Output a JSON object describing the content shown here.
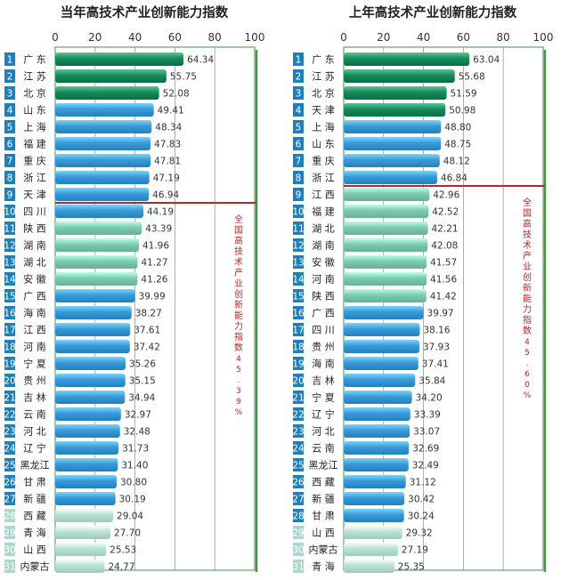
{
  "colors": {
    "dark_green": "#1a8a5a",
    "blue": "#3a9ad8",
    "teal": "#7dcaae",
    "light_teal": "#b8e2d2",
    "rank_badge": "#1f7fb8",
    "cutoff_line": "#c0202a",
    "cutoff_label": "#c0202a",
    "frame": "#7fb87f"
  },
  "chart_data": [
    {
      "type": "bar",
      "orientation": "horizontal",
      "title": "当年高技术产业创新能力指数",
      "xlim": [
        0,
        100
      ],
      "xticks": [
        "0",
        "20",
        "40",
        "60",
        "80",
        "100"
      ],
      "grid": true,
      "cutoff_after_rank": 9,
      "cutoff_label": "全国高技术产业创新能力指数45.39%",
      "ranks": [
        "1",
        "2",
        "3",
        "4",
        "5",
        "6",
        "7",
        "8",
        "9",
        "10",
        "11",
        "12",
        "13",
        "14",
        "15",
        "16",
        "17",
        "18",
        "19",
        "20",
        "21",
        "22",
        "23",
        "24",
        "25",
        "26",
        "27",
        "28",
        "29",
        "30",
        "31"
      ],
      "categories": [
        "广 东",
        "江 苏",
        "北 京",
        "山 东",
        "上 海",
        "福 建",
        "重 庆",
        "浙 江",
        "天 津",
        "四 川",
        "陕 西",
        "湖 南",
        "湖 北",
        "安 徽",
        "广 西",
        "海 南",
        "江 西",
        "河 南",
        "宁 夏",
        "贵 州",
        "吉 林",
        "云 南",
        "河 北",
        "辽 宁",
        "黑龙江",
        "甘 肃",
        "新 疆",
        "西 藏",
        "青 海",
        "山 西",
        "内蒙古"
      ],
      "value_labels": [
        "64.34",
        "55.75",
        "52.08",
        "49.41",
        "48.34",
        "47.83",
        "47.81",
        "47.19",
        "46.94",
        "44.19",
        "43.39",
        "41.96",
        "41.27",
        "41.26",
        "39.99",
        "38.27",
        "37.61",
        "37.42",
        "35.26",
        "35.15",
        "34.94",
        "32.97",
        "32.48",
        "31.73",
        "31.40",
        "30.80",
        "30.19",
        "29.04",
        "27.70",
        "25.53",
        "24.77"
      ],
      "values": [
        64.34,
        55.75,
        52.08,
        49.41,
        48.34,
        47.83,
        47.81,
        47.19,
        46.94,
        44.19,
        43.39,
        41.96,
        41.27,
        41.26,
        39.99,
        38.27,
        37.61,
        37.42,
        35.26,
        35.15,
        34.94,
        32.97,
        32.48,
        31.73,
        31.4,
        30.8,
        30.19,
        29.04,
        27.7,
        25.53,
        24.77
      ],
      "bar_colors": [
        "dark_green",
        "dark_green",
        "dark_green",
        "blue",
        "blue",
        "blue",
        "blue",
        "blue",
        "blue",
        "blue",
        "teal",
        "teal",
        "teal",
        "teal",
        "blue",
        "blue",
        "blue",
        "blue",
        "blue",
        "blue",
        "blue",
        "blue",
        "blue",
        "blue",
        "blue",
        "blue",
        "blue",
        "light_teal",
        "light_teal",
        "light_teal",
        "light_teal"
      ]
    },
    {
      "type": "bar",
      "orientation": "horizontal",
      "title": "上年高技术产业创新能力指数",
      "xlim": [
        0,
        100
      ],
      "xticks": [
        "0",
        "20",
        "40",
        "60",
        "80",
        "100"
      ],
      "grid": true,
      "cutoff_after_rank": 8,
      "cutoff_label": "全国高技术产业创新能力指数45.60%",
      "ranks": [
        "1",
        "2",
        "3",
        "4",
        "5",
        "6",
        "7",
        "8",
        "9",
        "10",
        "11",
        "12",
        "13",
        "14",
        "15",
        "16",
        "17",
        "18",
        "19",
        "20",
        "21",
        "22",
        "23",
        "24",
        "25",
        "26",
        "27",
        "28",
        "29",
        "30",
        "31"
      ],
      "categories": [
        "广 东",
        "江 苏",
        "北 京",
        "天 津",
        "上 海",
        "山 东",
        "重 庆",
        "浙 江",
        "江 西",
        "福 建",
        "湖 北",
        "湖 南",
        "安 徽",
        "河 南",
        "陕 西",
        "广 西",
        "四 川",
        "贵 州",
        "海 南",
        "吉 林",
        "宁 夏",
        "辽 宁",
        "河 北",
        "云 南",
        "黑龙江",
        "西 藏",
        "新 疆",
        "甘 肃",
        "山 西",
        "内蒙古",
        "青 海"
      ],
      "value_labels": [
        "63.04",
        "55.68",
        "51.59",
        "50.98",
        "48.80",
        "48.75",
        "48.12",
        "46.84",
        "42.96",
        "42.52",
        "42.21",
        "42.08",
        "41.57",
        "41.56",
        "41.42",
        "39.97",
        "38.16",
        "37.93",
        "37.41",
        "35.84",
        "34.20",
        "33.39",
        "33.07",
        "32.69",
        "32.49",
        "31.12",
        "30.42",
        "30.24",
        "29.32",
        "27.19",
        "25.35"
      ],
      "values": [
        63.04,
        55.68,
        51.59,
        50.98,
        48.8,
        48.75,
        48.12,
        46.84,
        42.96,
        42.52,
        42.21,
        42.08,
        41.57,
        41.56,
        41.42,
        39.97,
        38.16,
        37.93,
        37.41,
        35.84,
        34.2,
        33.39,
        33.07,
        32.69,
        32.49,
        31.12,
        30.42,
        30.24,
        29.32,
        27.19,
        25.35
      ],
      "bar_colors": [
        "dark_green",
        "dark_green",
        "dark_green",
        "dark_green",
        "blue",
        "blue",
        "blue",
        "blue",
        "teal",
        "teal",
        "teal",
        "teal",
        "teal",
        "teal",
        "teal",
        "blue",
        "blue",
        "blue",
        "blue",
        "blue",
        "blue",
        "blue",
        "blue",
        "blue",
        "blue",
        "blue",
        "blue",
        "blue",
        "light_teal",
        "light_teal",
        "light_teal"
      ]
    }
  ]
}
